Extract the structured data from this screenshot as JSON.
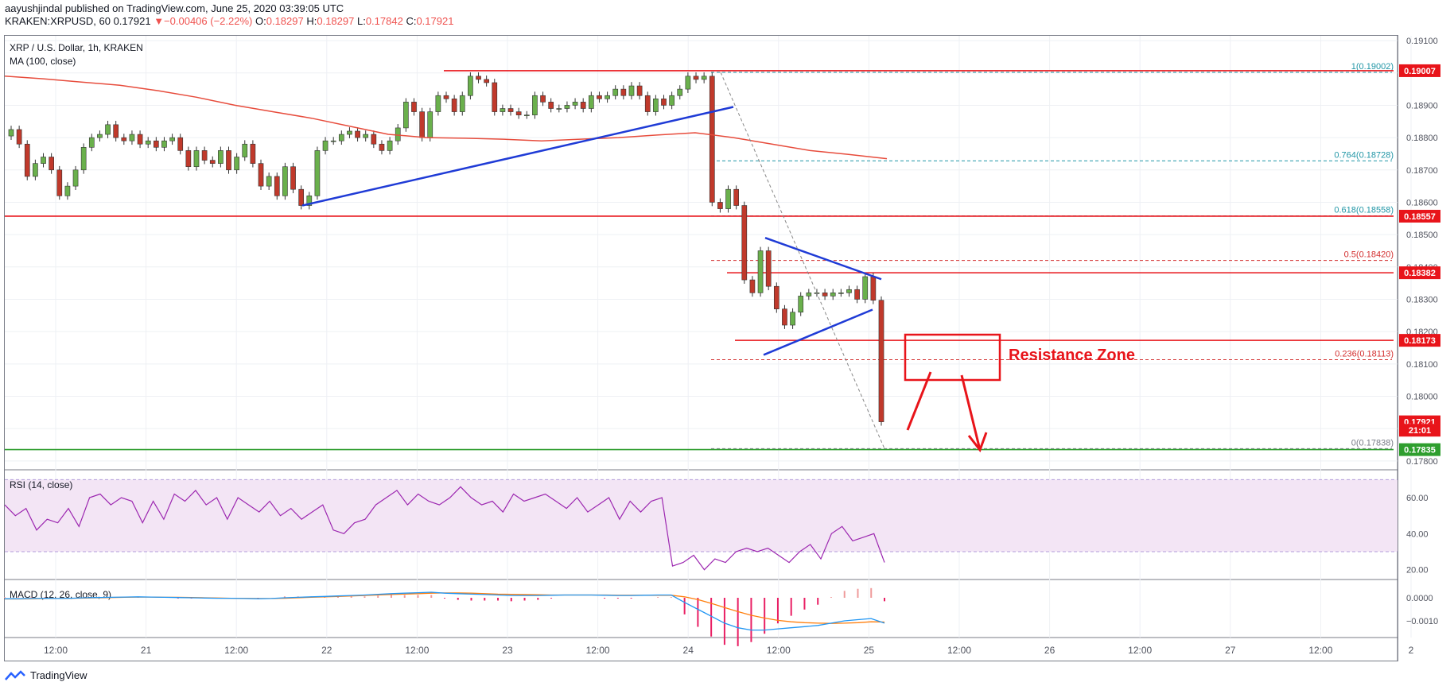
{
  "header": {
    "line1": "aayushjindal published on TradingView.com, June 25, 2020 03:39:05 UTC",
    "symbol": "KRAKEN:XRPUSD, 60",
    "last": "0.17921",
    "change": "▼−0.00406 (−2.22%)",
    "o_label": "O:",
    "o_val": "0.18297",
    "h_label": "H:",
    "h_val": "0.18297",
    "l_label": "L:",
    "l_val": "0.17842",
    "c_label": "C:",
    "c_val": "0.17921"
  },
  "legend": {
    "title": "XRP / U.S. Dollar, 1h, KRAKEN",
    "ma": "MA (100, close)",
    "rsi": "RSI (14, close)",
    "macd": "MACD (12, 26, close, 9)"
  },
  "footer": {
    "brand": "TradingView"
  },
  "colors": {
    "up": "#26a69a",
    "down": "#ef5350",
    "candle_up": "#6ab04c",
    "candle_down": "#c0392b",
    "ma": "#e74c3c",
    "trend": "#1f3bd6",
    "red_line": "#e8141a",
    "green_line": "#2e9e2e",
    "fib": "#2196a6",
    "rsi": "#9c27b0",
    "rsi_band": "#f3e5f5",
    "macd": "#2196f3",
    "signal": "#ff7f0e"
  },
  "chart_data": {
    "type": "candlestick",
    "title": "XRP / U.S. Dollar, 1h, KRAKEN",
    "x_ticks": [
      "12:00",
      "21",
      "12:00",
      "22",
      "12:00",
      "23",
      "12:00",
      "24",
      "12:00",
      "25",
      "12:00",
      "26",
      "12:00",
      "27",
      "12:00",
      "2"
    ],
    "y_ticks": [
      "0.19100",
      "0.19000",
      "0.18900",
      "0.18800",
      "0.18700",
      "0.18600",
      "0.18500",
      "0.18400",
      "0.18300",
      "0.18200",
      "0.18100",
      "0.18000",
      "0.17900",
      "0.17800"
    ],
    "ylim": [
      0.17775,
      0.19115
    ],
    "candles": [
      [
        0.18805,
        0.18825
      ],
      [
        0.18825,
        0.1878
      ],
      [
        0.1878,
        0.1868
      ],
      [
        0.1868,
        0.1872
      ],
      [
        0.1872,
        0.1874
      ],
      [
        0.1874,
        0.187
      ],
      [
        0.187,
        0.1862
      ],
      [
        0.1862,
        0.1865
      ],
      [
        0.1865,
        0.187
      ],
      [
        0.187,
        0.1877
      ],
      [
        0.1877,
        0.188
      ],
      [
        0.188,
        0.1881
      ],
      [
        0.1881,
        0.1884
      ],
      [
        0.1884,
        0.188
      ],
      [
        0.188,
        0.1879
      ],
      [
        0.1879,
        0.1881
      ],
      [
        0.1881,
        0.1878
      ],
      [
        0.1878,
        0.1879
      ],
      [
        0.1879,
        0.1877
      ],
      [
        0.1877,
        0.1879
      ],
      [
        0.1879,
        0.188
      ],
      [
        0.188,
        0.1876
      ],
      [
        0.1876,
        0.1871
      ],
      [
        0.1871,
        0.1876
      ],
      [
        0.1876,
        0.1873
      ],
      [
        0.1873,
        0.1872
      ],
      [
        0.1872,
        0.1876
      ],
      [
        0.1876,
        0.187
      ],
      [
        0.187,
        0.1874
      ],
      [
        0.1874,
        0.1878
      ],
      [
        0.1878,
        0.1872
      ],
      [
        0.1872,
        0.1865
      ],
      [
        0.1865,
        0.1868
      ],
      [
        0.1868,
        0.1862
      ],
      [
        0.1862,
        0.1871
      ],
      [
        0.1871,
        0.1864
      ],
      [
        0.1864,
        0.1859
      ],
      [
        0.1859,
        0.1862
      ],
      [
        0.1862,
        0.1876
      ],
      [
        0.1876,
        0.1879
      ],
      [
        0.1879,
        0.1879
      ],
      [
        0.1879,
        0.1881
      ],
      [
        0.1881,
        0.1882
      ],
      [
        0.1882,
        0.188
      ],
      [
        0.188,
        0.1881
      ],
      [
        0.1881,
        0.1878
      ],
      [
        0.1878,
        0.1876
      ],
      [
        0.1876,
        0.1879
      ],
      [
        0.1879,
        0.1883
      ],
      [
        0.1883,
        0.1891
      ],
      [
        0.1891,
        0.1888
      ],
      [
        0.1888,
        0.188
      ],
      [
        0.188,
        0.1888
      ],
      [
        0.1888,
        0.1893
      ],
      [
        0.1893,
        0.1892
      ],
      [
        0.1892,
        0.1888
      ],
      [
        0.1888,
        0.1893
      ],
      [
        0.1893,
        0.1899
      ],
      [
        0.1899,
        0.1898
      ],
      [
        0.1898,
        0.1897
      ],
      [
        0.1897,
        0.1888
      ],
      [
        0.1888,
        0.1889
      ],
      [
        0.1889,
        0.1888
      ],
      [
        0.1888,
        0.1887
      ],
      [
        0.1887,
        0.1887
      ],
      [
        0.1887,
        0.1893
      ],
      [
        0.1893,
        0.1891
      ],
      [
        0.1891,
        0.1889
      ],
      [
        0.1889,
        0.1889
      ],
      [
        0.1889,
        0.189
      ],
      [
        0.189,
        0.1891
      ],
      [
        0.1891,
        0.1889
      ],
      [
        0.1889,
        0.1893
      ],
      [
        0.1893,
        0.1892
      ],
      [
        0.1892,
        0.1893
      ],
      [
        0.1893,
        0.1895
      ],
      [
        0.1895,
        0.1893
      ],
      [
        0.1893,
        0.1896
      ],
      [
        0.1896,
        0.1893
      ],
      [
        0.1893,
        0.1888
      ],
      [
        0.1888,
        0.1892
      ],
      [
        0.1892,
        0.189
      ],
      [
        0.189,
        0.1893
      ],
      [
        0.1893,
        0.1895
      ],
      [
        0.1895,
        0.1899
      ],
      [
        0.1899,
        0.1898
      ],
      [
        0.1898,
        0.1899
      ],
      [
        0.1899,
        0.186
      ],
      [
        0.186,
        0.1858
      ],
      [
        0.1858,
        0.1864
      ],
      [
        0.1864,
        0.1859
      ],
      [
        0.1859,
        0.1836
      ],
      [
        0.1836,
        0.1832
      ],
      [
        0.1832,
        0.1845
      ],
      [
        0.1845,
        0.1834
      ],
      [
        0.1834,
        0.1827
      ],
      [
        0.1827,
        0.1822
      ],
      [
        0.1822,
        0.1826
      ],
      [
        0.1826,
        0.1831
      ],
      [
        0.1831,
        0.1832
      ],
      [
        0.1832,
        0.1832
      ],
      [
        0.1832,
        0.1831
      ],
      [
        0.1831,
        0.1832
      ],
      [
        0.1832,
        0.1832
      ],
      [
        0.1832,
        0.1833
      ],
      [
        0.1833,
        0.183
      ],
      [
        0.183,
        0.1837
      ],
      [
        0.1837,
        0.18297
      ],
      [
        0.18297,
        0.17921
      ]
    ],
    "ma100": [
      0.1899,
      0.18982,
      0.18972,
      0.18962,
      0.18945,
      0.18925,
      0.189,
      0.1888,
      0.1886,
      0.18835,
      0.1881,
      0.188,
      0.18798,
      0.18795,
      0.1879,
      0.18795,
      0.188,
      0.18808,
      0.18815,
      0.188,
      0.1878,
      0.1876,
      0.18748,
      0.18735
    ],
    "rsi": [
      56,
      50,
      54,
      42,
      48,
      46,
      54,
      44,
      60,
      62,
      56,
      60,
      58,
      46,
      58,
      48,
      62,
      58,
      64,
      56,
      60,
      48,
      60,
      56,
      52,
      58,
      50,
      54,
      48,
      52,
      56,
      42,
      40,
      46,
      48,
      56,
      60,
      64,
      56,
      62,
      58,
      56,
      60,
      66,
      60,
      56,
      58,
      52,
      62,
      58,
      60,
      62,
      58,
      54,
      60,
      52,
      56,
      60,
      48,
      58,
      52,
      58,
      60,
      22,
      24,
      28,
      20,
      26,
      24,
      30,
      32,
      30,
      32,
      28,
      24,
      30,
      34,
      26,
      40,
      44,
      36,
      38,
      40,
      24
    ],
    "macd": [
      -4e-05,
      -4e-05,
      -3e-05,
      -2e-05,
      -3e-05,
      -2e-05,
      0.0,
      1e-05,
      2e-05,
      3e-05,
      4e-05,
      3e-05,
      2e-05,
      1e-05,
      0.0,
      -1e-05,
      -2e-05,
      -2e-05,
      -3e-05,
      -4e-05,
      -3e-05,
      0.0,
      2e-05,
      4e-05,
      6e-05,
      8e-05,
      0.0001,
      0.00012,
      0.00015,
      0.00018,
      0.0002,
      0.00022,
      0.00024,
      0.0002,
      0.00018,
      0.00016,
      0.00014,
      0.00012,
      0.0001,
      0.0001,
      0.0001,
      0.00011,
      0.00012,
      0.00012,
      0.00012,
      0.00011,
      0.0001,
      0.0001,
      0.00011,
      0.00012,
      0.00012,
      -0.0002,
      -0.0005,
      -0.0008,
      -0.0011,
      -0.0013,
      -0.0014,
      -0.0014,
      -0.00135,
      -0.0013,
      -0.00125,
      -0.0012,
      -0.0011,
      -0.001,
      -0.00095,
      -0.0009,
      -0.0011
    ],
    "signal": [
      -5e-05,
      -5e-05,
      -4e-05,
      -3e-05,
      -3e-05,
      -2e-05,
      -1e-05,
      0.0,
      1e-05,
      2e-05,
      3e-05,
      3e-05,
      2e-05,
      2e-05,
      1e-05,
      0.0,
      -1e-05,
      -2e-05,
      -2e-05,
      -3e-05,
      -3e-05,
      -2e-05,
      0.0,
      2e-05,
      4e-05,
      6e-05,
      8e-05,
      0.0001,
      0.00012,
      0.00014,
      0.00016,
      0.00018,
      0.0002,
      0.00021,
      0.00021,
      0.0002,
      0.00018,
      0.00016,
      0.00015,
      0.00014,
      0.00013,
      0.00012,
      0.00012,
      0.00012,
      0.00012,
      0.00012,
      0.00011,
      0.00011,
      0.00011,
      0.00011,
      0.00011,
      4e-05,
      -8e-05,
      -0.00024,
      -0.00042,
      -0.0006,
      -0.00076,
      -0.00088,
      -0.00098,
      -0.00104,
      -0.00108,
      -0.0011,
      -0.00111,
      -0.0011,
      -0.00108,
      -0.00104,
      -0.00105
    ],
    "rsi_ticks": [
      "60.00",
      "40.00",
      "20.00"
    ],
    "macd_ticks": [
      "0.0000",
      "−0.0010"
    ],
    "price_badges": [
      {
        "value": "0.19007",
        "color": "#e8141a"
      },
      {
        "value": "0.18557",
        "color": "#e8141a"
      },
      {
        "value": "0.18382",
        "color": "#e8141a"
      },
      {
        "value": "0.18173",
        "color": "#e8141a"
      },
      {
        "value": "0.17921",
        "color": "#e8141a"
      },
      {
        "value": "21:01",
        "color": "#e8141a"
      },
      {
        "value": "0.17835",
        "color": "#2e9e2e"
      }
    ],
    "fib_levels": [
      {
        "label": "1(0.19002)",
        "value": 0.19002
      },
      {
        "label": "0.764(0.18728)",
        "value": 0.18728
      },
      {
        "label": "0.618(0.18558)",
        "value": 0.18558
      },
      {
        "label": "0.5(0.18420)",
        "value": 0.1842
      },
      {
        "label": "0.236(0.18113)",
        "value": 0.18113
      },
      {
        "label": "0(0.17838)",
        "value": 0.17838
      }
    ],
    "horizontal_lines": [
      0.19007,
      0.18557,
      0.18382,
      0.18173,
      0.17835
    ],
    "annotation": "Resistance Zone"
  }
}
